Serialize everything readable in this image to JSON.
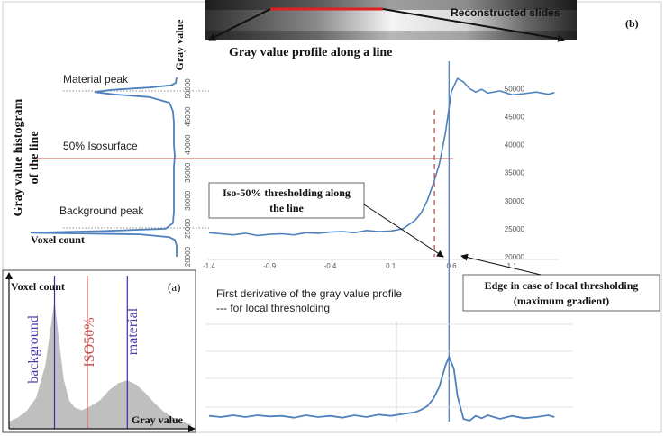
{
  "panel_b": {
    "panel_label": "(b)",
    "slide_label": "Reconstructed slides",
    "profile_title": "Gray value profile along a line",
    "hist_axis_title_line1": "Gray value histogram",
    "hist_axis_title_line2": "of the line",
    "gray_value_label": "Gray value",
    "voxel_count_label": "Voxel count",
    "material_peak_label": "Material peak",
    "isosurface_label": "50% Isosurface",
    "background_peak_label": "Background peak",
    "iso_threshold_callout_line1": "Iso-50% thresholding along",
    "iso_threshold_callout_line2": "the line",
    "edge_callout_line1": "Edge in case of local thresholding",
    "edge_callout_line2": "(maximum gradient)",
    "derivative_title_line1": "First derivative of the gray value profile",
    "derivative_title_line2": "--- for local thresholding"
  },
  "panel_a": {
    "panel_label": "(a)",
    "voxel_count_label": "Voxel count",
    "gray_value_label": "Gray value",
    "background_label": "background",
    "iso_label": "ISO50%",
    "material_label": "material"
  },
  "colors": {
    "profile_line": "#4f81bd",
    "iso_line": "#c0504d",
    "histogram_fill": "#bfbfbf",
    "background_line": "#3333aa",
    "material_label": "#4a3aa8",
    "iso_label": "#c0504d"
  },
  "chart_data": [
    {
      "type": "line",
      "name": "profile",
      "x_ticks": [
        "-1.4",
        "-0.9",
        "-0.4",
        "0.1",
        "0.6",
        "1.1"
      ],
      "y_ticks": [
        "20000",
        "25000",
        "30000",
        "35000",
        "40000",
        "45000",
        "50000"
      ],
      "xlim": [
        -1.4,
        1.5
      ],
      "ylim": [
        20000,
        52000
      ],
      "x": [
        -1.4,
        -1.3,
        -1.2,
        -1.1,
        -1.0,
        -0.9,
        -0.8,
        -0.7,
        -0.6,
        -0.5,
        -0.4,
        -0.3,
        -0.2,
        -0.1,
        0.0,
        0.1,
        0.2,
        0.3,
        0.35,
        0.4,
        0.45,
        0.5,
        0.55,
        0.6,
        0.65,
        0.7,
        0.75,
        0.8,
        0.85,
        0.9,
        1.0,
        1.1,
        1.2,
        1.3,
        1.4,
        1.45
      ],
      "y": [
        24300,
        24100,
        23900,
        24200,
        23800,
        24000,
        24100,
        23900,
        24300,
        24200,
        24400,
        24500,
        24300,
        24700,
        24500,
        24600,
        25000,
        26500,
        27800,
        30000,
        33000,
        36500,
        42000,
        49500,
        51800,
        51200,
        50000,
        49400,
        49900,
        49200,
        49600,
        48900,
        49100,
        49400,
        49000,
        49300
      ],
      "iso_threshold_value": 37500,
      "iso_threshold_x": 0.46,
      "edge_x": 0.58
    },
    {
      "type": "line",
      "name": "first-derivative",
      "x": [
        -1.4,
        -1.3,
        -1.2,
        -1.1,
        -1.0,
        -0.9,
        -0.8,
        -0.7,
        -0.6,
        -0.5,
        -0.4,
        -0.3,
        -0.2,
        -0.1,
        0.0,
        0.1,
        0.2,
        0.3,
        0.35,
        0.4,
        0.45,
        0.5,
        0.55,
        0.58,
        0.62,
        0.65,
        0.7,
        0.75,
        0.8,
        0.85,
        0.9,
        1.0,
        1.1,
        1.2,
        1.3,
        1.4,
        1.45
      ],
      "y": [
        0.02,
        0.0,
        0.03,
        0.0,
        0.03,
        0.01,
        0.02,
        -0.01,
        0.03,
        0.0,
        0.02,
        -0.01,
        0.03,
        0.0,
        0.04,
        0.02,
        0.05,
        0.08,
        0.12,
        0.18,
        0.3,
        0.5,
        0.85,
        1.0,
        0.8,
        0.35,
        -0.03,
        -0.06,
        0.02,
        -0.02,
        0.03,
        -0.03,
        0.02,
        -0.02,
        0.0,
        0.03,
        0.0
      ]
    },
    {
      "type": "line",
      "name": "gray-value-histogram",
      "gray_value": [
        20000,
        22000,
        23000,
        23500,
        24000,
        24300,
        24600,
        25000,
        26000,
        28000,
        30000,
        32000,
        34000,
        36000,
        38000,
        40000,
        42000,
        44000,
        46000,
        47500,
        48500,
        49000,
        49400,
        49800,
        50200,
        50600,
        51000,
        52000
      ],
      "voxel_count": [
        0,
        0,
        2,
        8,
        40,
        160,
        80,
        12,
        4,
        3,
        3,
        3,
        3,
        3,
        2,
        3,
        3,
        3,
        4,
        8,
        30,
        70,
        90,
        70,
        30,
        6,
        1,
        0
      ]
    },
    {
      "type": "area",
      "name": "schematic-histogram",
      "x": [
        0,
        0.05,
        0.1,
        0.15,
        0.2,
        0.25,
        0.3,
        0.33,
        0.36,
        0.4,
        0.45,
        0.5,
        0.55,
        0.6,
        0.65,
        0.7,
        0.75,
        0.8,
        0.85,
        0.9,
        0.95,
        1.0
      ],
      "y": [
        0.05,
        0.08,
        0.13,
        0.22,
        0.45,
        0.9,
        0.35,
        0.2,
        0.15,
        0.13,
        0.16,
        0.2,
        0.27,
        0.32,
        0.34,
        0.31,
        0.25,
        0.18,
        0.12,
        0.08,
        0.05,
        0.03
      ],
      "markers": {
        "background": 0.25,
        "iso50": 0.43,
        "material": 0.65
      }
    }
  ]
}
